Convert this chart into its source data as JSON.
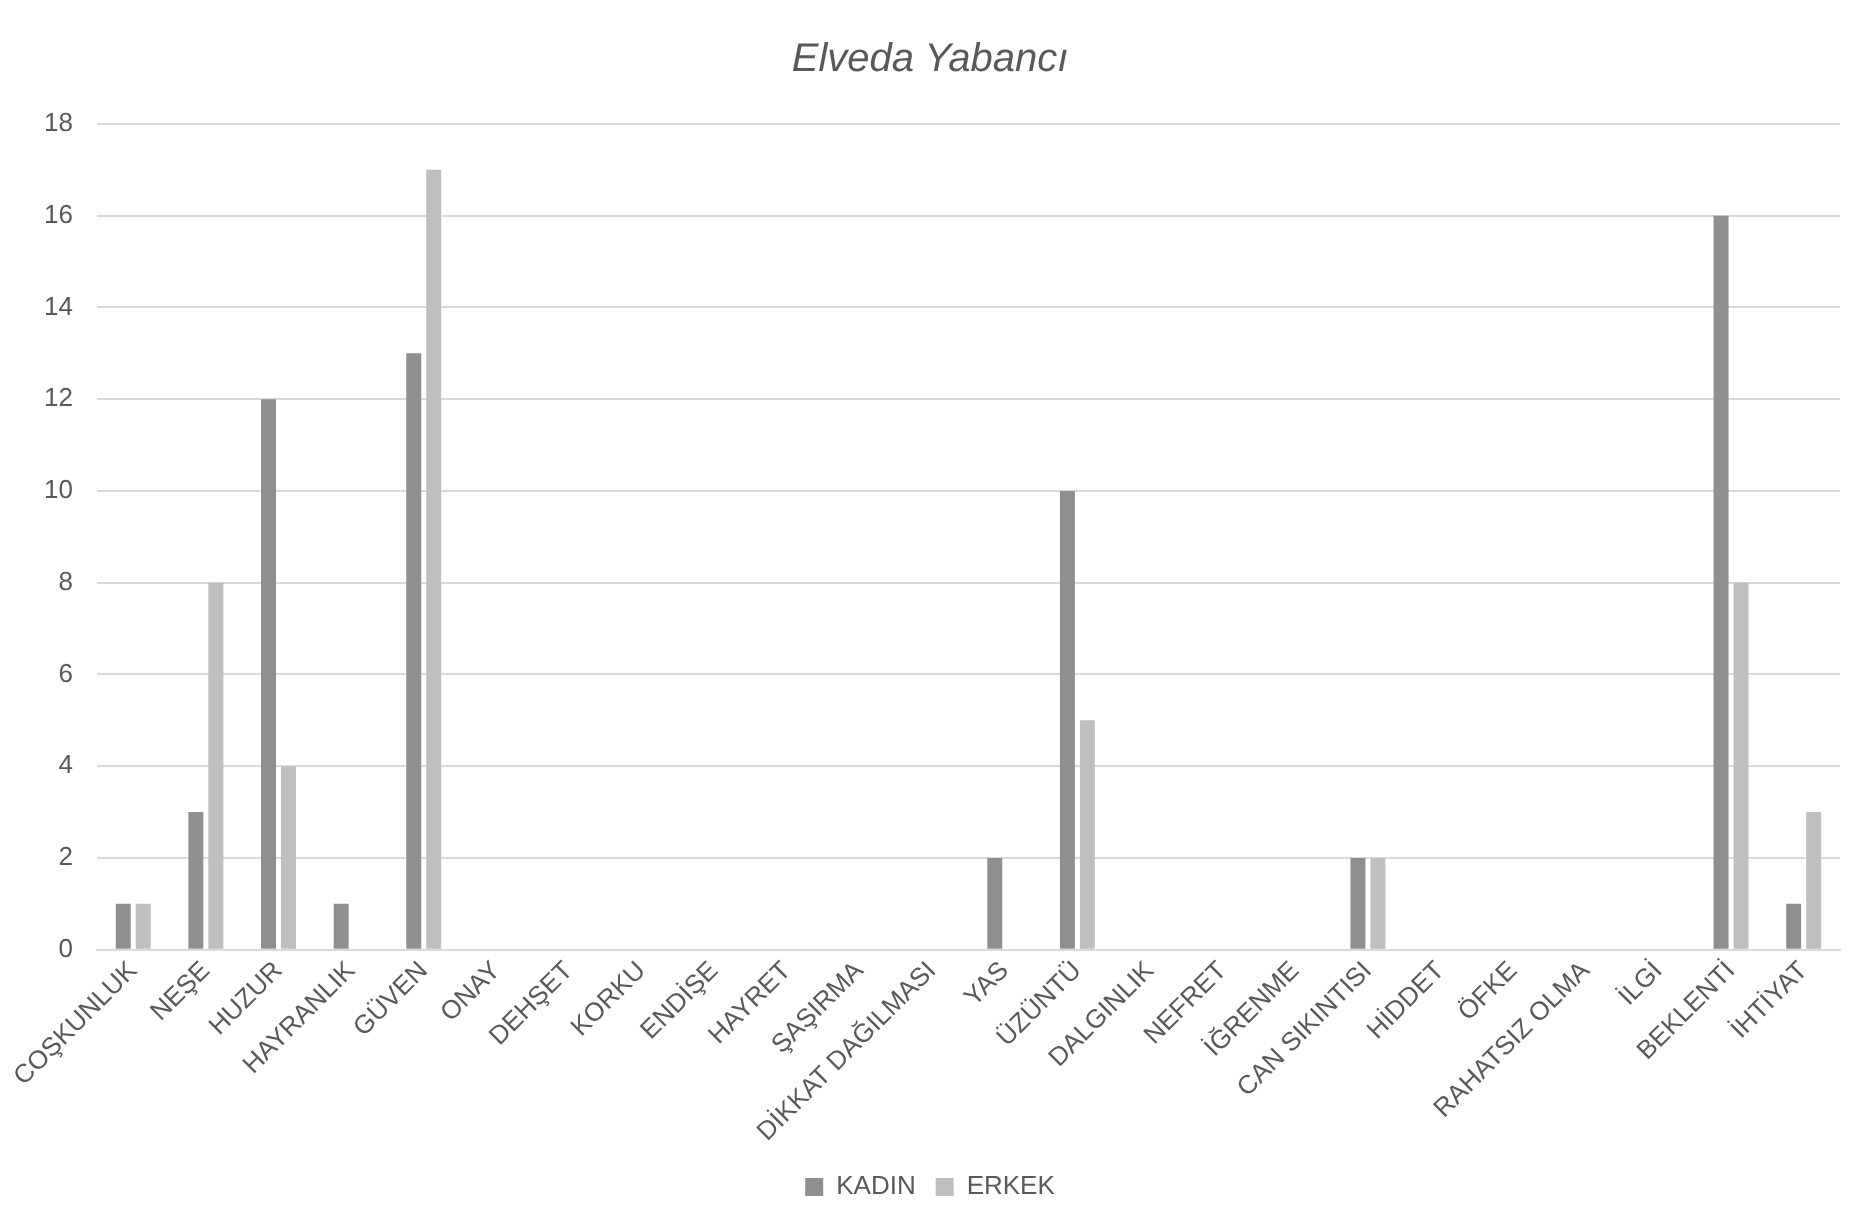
{
  "chart_data": {
    "type": "bar",
    "title": "Elveda Yabancı",
    "categories": [
      "COŞKUNLUK",
      "NEŞE",
      "HUZUR",
      "HAYRANLIK",
      "GÜVEN",
      "ONAY",
      "DEHŞET",
      "KORKU",
      "ENDİŞE",
      "HAYRET",
      "ŞAŞIRMA",
      "DİKKAT DAĞILMASI",
      "YAS",
      "ÜZÜNTÜ",
      "DALGINLIK",
      "NEFRET",
      "İĞRENME",
      "CAN SIKINTISI",
      "HİDDET",
      "ÖFKE",
      "RAHATSIZ OLMA",
      "İLGİ",
      "BEKLENTİ",
      "İHTİYAT"
    ],
    "series": [
      {
        "name": "KADIN",
        "color": "#8f8f8f",
        "values": [
          1,
          3,
          12,
          1,
          13,
          0,
          0,
          0,
          0,
          0,
          0,
          0,
          2,
          10,
          0,
          0,
          0,
          2,
          0,
          0,
          0,
          0,
          16,
          1
        ]
      },
      {
        "name": "ERKEK",
        "color": "#bfbfbf",
        "values": [
          1,
          8,
          4,
          0,
          17,
          0,
          0,
          0,
          0,
          0,
          0,
          0,
          0,
          5,
          0,
          0,
          0,
          2,
          0,
          0,
          0,
          0,
          8,
          3
        ]
      }
    ],
    "ylim": [
      0,
      18
    ],
    "yticks": [
      0,
      2,
      4,
      6,
      8,
      10,
      12,
      14,
      16,
      18
    ],
    "grid": "y",
    "legend": "bottom"
  }
}
